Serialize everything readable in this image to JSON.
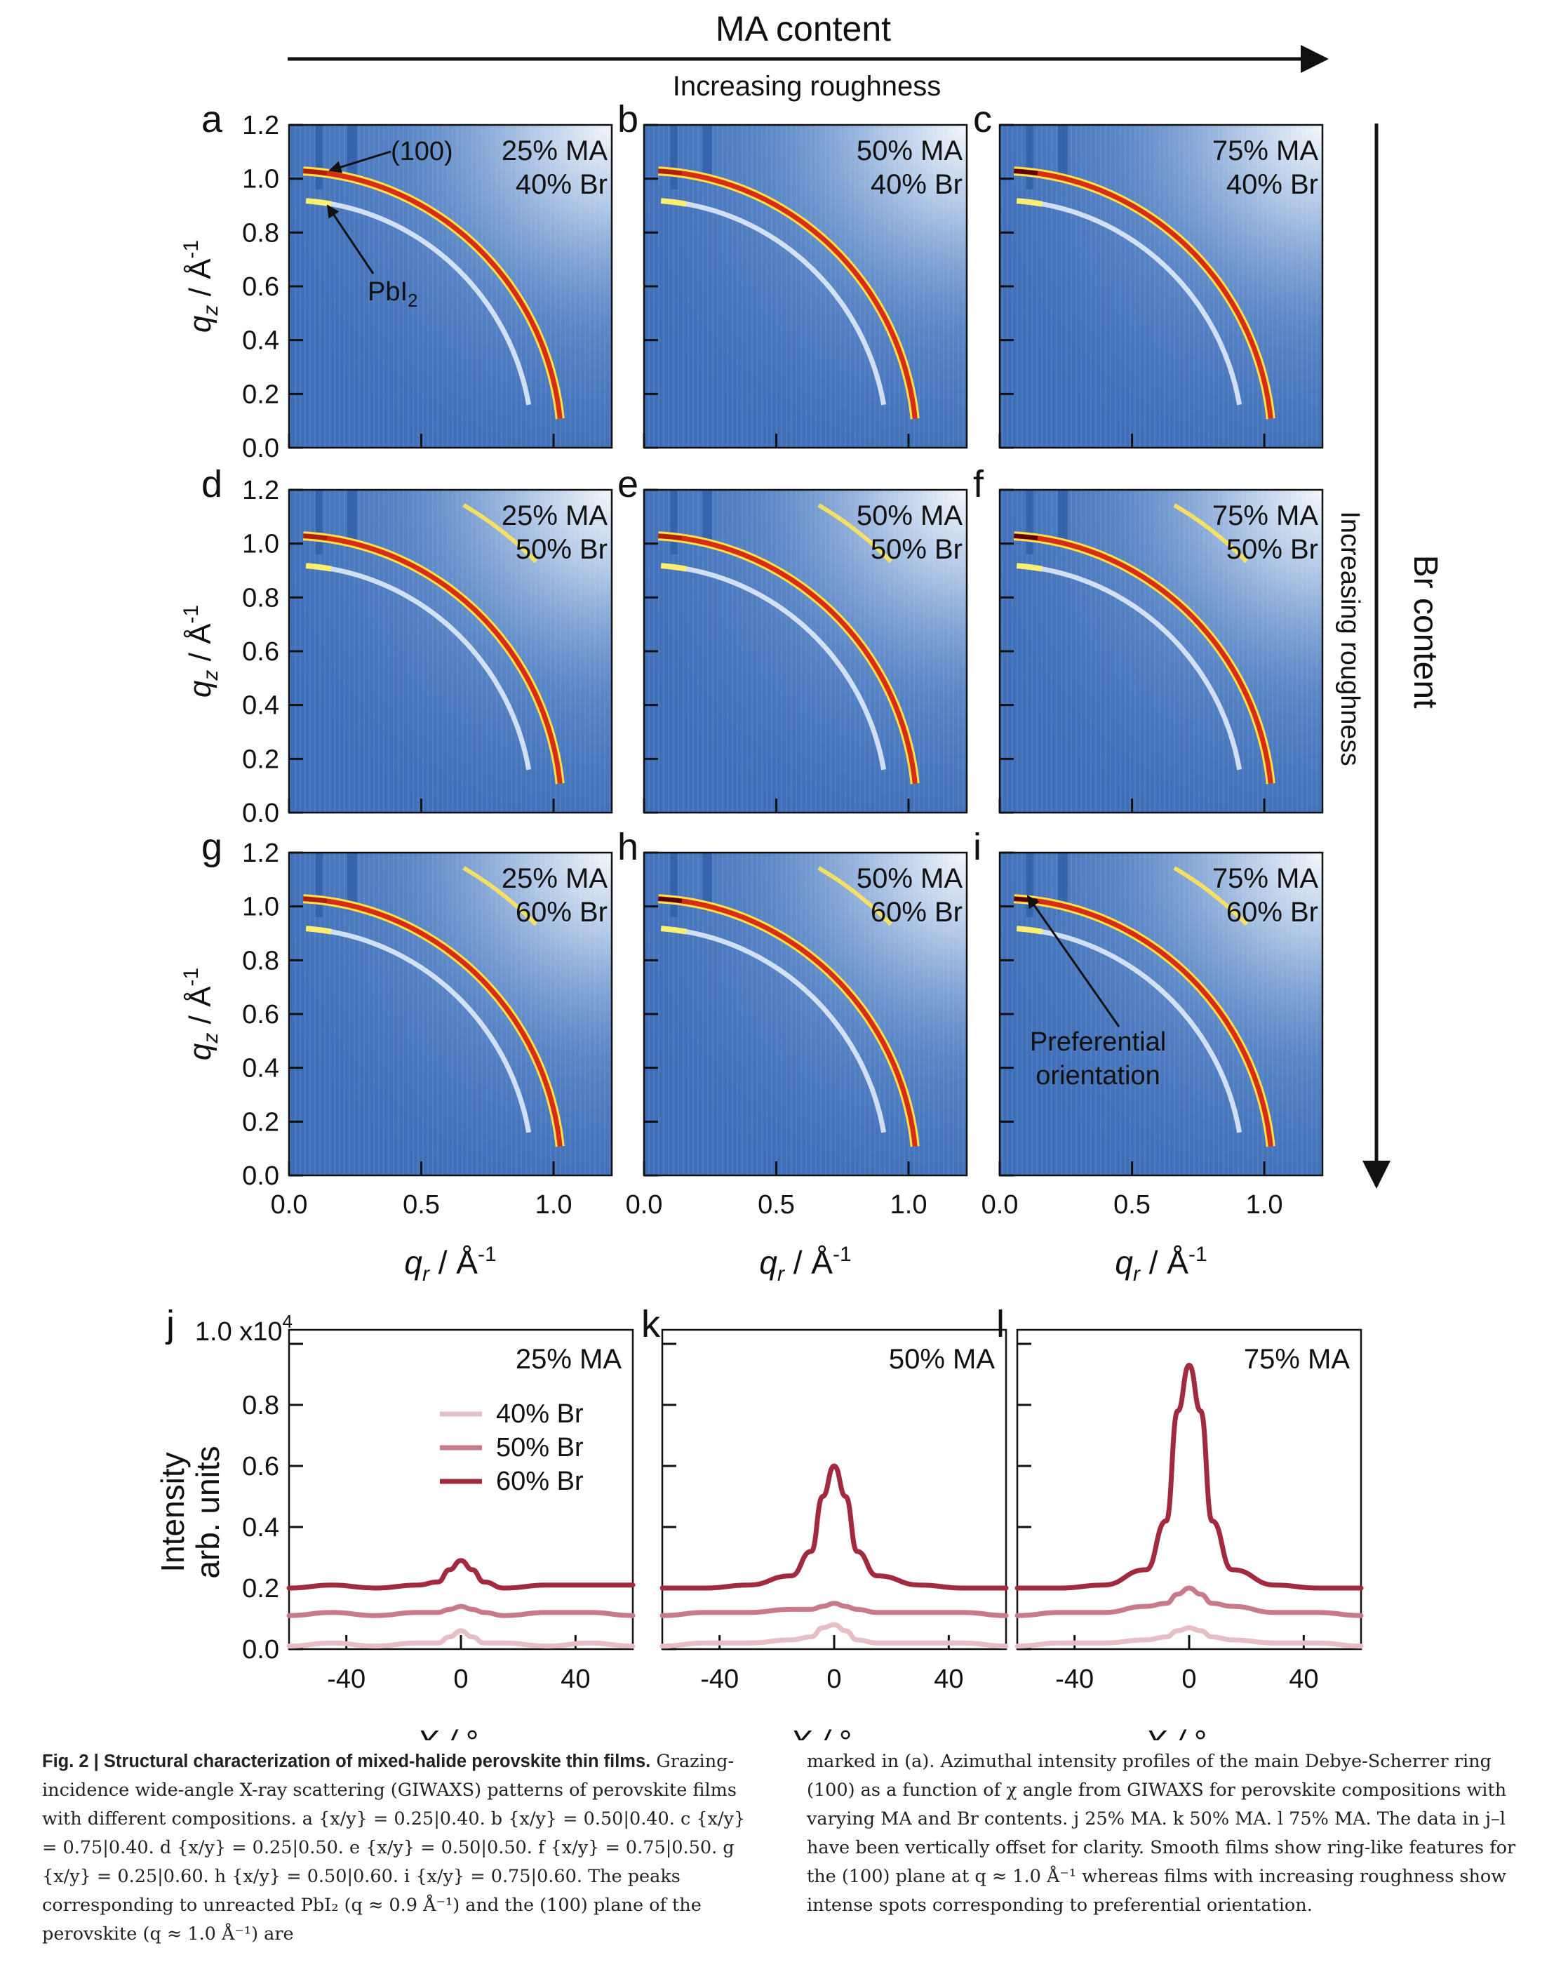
{
  "header": {
    "top_label": "MA content",
    "top_sub": "Increasing roughness",
    "right_label": "Br content",
    "right_sub": "Increasing roughness"
  },
  "giwaxs": {
    "y_axis_label": "q",
    "y_axis_sub": "z",
    "y_axis_unit": " / Å",
    "y_axis_exp": "-1",
    "x_axis_label": "q",
    "x_axis_sub": "r",
    "x_axis_unit": " / Å",
    "x_axis_exp": "-1",
    "y_ticks": [
      "0.0",
      "0.2",
      "0.4",
      "0.6",
      "0.8",
      "1.0",
      "1.2"
    ],
    "x_ticks": [
      "0.0",
      "0.5",
      "1.0"
    ],
    "panels": [
      {
        "letter": "a",
        "ma": "25% MA",
        "br": "40% Br"
      },
      {
        "letter": "b",
        "ma": "50% MA",
        "br": "40% Br"
      },
      {
        "letter": "c",
        "ma": "75% MA",
        "br": "40% Br"
      },
      {
        "letter": "d",
        "ma": "25% MA",
        "br": "50% Br"
      },
      {
        "letter": "e",
        "ma": "50% MA",
        "br": "50% Br"
      },
      {
        "letter": "f",
        "ma": "75% MA",
        "br": "50% Br"
      },
      {
        "letter": "g",
        "ma": "25% MA",
        "br": "60% Br"
      },
      {
        "letter": "h",
        "ma": "50% MA",
        "br": "60% Br"
      },
      {
        "letter": "i",
        "ma": "75% MA",
        "br": "60% Br"
      }
    ],
    "annotations": {
      "plane": "(100)",
      "pbi": "PbI",
      "pbi_sub": "2",
      "pref_1": "Preferential",
      "pref_2": "orientation"
    }
  },
  "chart_data": [
    {
      "type": "line",
      "panel": "j",
      "label": "25% MA",
      "xlabel": "X / °",
      "ylabel": "Intensity arb. units",
      "y_scale_label": "1.0 x10",
      "y_scale_exp": "4",
      "xlim": [
        -60,
        60
      ],
      "ylim": [
        0.0,
        1.0
      ],
      "x_ticks": [
        -40,
        0,
        40
      ],
      "y_ticks": [
        "0.0",
        "0.2",
        "0.4",
        "0.6",
        "0.8"
      ],
      "legend_position": "top-center",
      "series": [
        {
          "name": "40% Br",
          "color": "#e7bdc6",
          "x": [
            -60,
            -45,
            -30,
            -15,
            -8,
            -4,
            0,
            4,
            8,
            15,
            30,
            45,
            60
          ],
          "y": [
            0.01,
            0.02,
            0.01,
            0.02,
            0.02,
            0.04,
            0.06,
            0.04,
            0.02,
            0.02,
            0.01,
            0.02,
            0.01
          ]
        },
        {
          "name": "50% Br",
          "color": "#c97a8a",
          "x": [
            -60,
            -45,
            -30,
            -15,
            -8,
            -4,
            0,
            4,
            8,
            15,
            30,
            45,
            60
          ],
          "y": [
            0.11,
            0.12,
            0.11,
            0.12,
            0.12,
            0.13,
            0.14,
            0.13,
            0.12,
            0.11,
            0.12,
            0.12,
            0.11
          ]
        },
        {
          "name": "60% Br",
          "color": "#a12a3f",
          "x": [
            -60,
            -45,
            -30,
            -15,
            -8,
            -4,
            0,
            4,
            8,
            15,
            30,
            45,
            60
          ],
          "y": [
            0.2,
            0.21,
            0.2,
            0.21,
            0.22,
            0.26,
            0.29,
            0.26,
            0.22,
            0.2,
            0.21,
            0.21,
            0.21
          ]
        }
      ]
    },
    {
      "type": "line",
      "panel": "k",
      "label": "50% MA",
      "xlabel": "X / °",
      "xlim": [
        -60,
        60
      ],
      "ylim": [
        0.0,
        1.0
      ],
      "x_ticks": [
        -40,
        0,
        40
      ],
      "series": [
        {
          "name": "40% Br",
          "color": "#e7bdc6",
          "x": [
            -60,
            -45,
            -30,
            -15,
            -8,
            -4,
            0,
            4,
            8,
            15,
            30,
            45,
            60
          ],
          "y": [
            0.01,
            0.02,
            0.02,
            0.03,
            0.04,
            0.07,
            0.08,
            0.06,
            0.03,
            0.02,
            0.02,
            0.02,
            0.01
          ]
        },
        {
          "name": "50% Br",
          "color": "#c97a8a",
          "x": [
            -60,
            -45,
            -30,
            -15,
            -8,
            -4,
            0,
            4,
            8,
            15,
            30,
            45,
            60
          ],
          "y": [
            0.11,
            0.12,
            0.12,
            0.13,
            0.13,
            0.14,
            0.15,
            0.14,
            0.13,
            0.12,
            0.12,
            0.12,
            0.11
          ]
        },
        {
          "name": "60% Br",
          "color": "#a12a3f",
          "x": [
            -60,
            -45,
            -30,
            -15,
            -8,
            -4,
            0,
            4,
            8,
            15,
            30,
            45,
            60
          ],
          "y": [
            0.2,
            0.2,
            0.21,
            0.24,
            0.32,
            0.5,
            0.6,
            0.5,
            0.32,
            0.24,
            0.21,
            0.2,
            0.2
          ]
        }
      ]
    },
    {
      "type": "line",
      "panel": "l",
      "label": "75% MA",
      "xlabel": "X / °",
      "xlim": [
        -60,
        60
      ],
      "ylim": [
        0.0,
        1.0
      ],
      "x_ticks": [
        -40,
        0,
        40
      ],
      "series": [
        {
          "name": "40% Br",
          "color": "#e7bdc6",
          "x": [
            -60,
            -45,
            -30,
            -15,
            -8,
            -4,
            0,
            4,
            8,
            15,
            30,
            45,
            60
          ],
          "y": [
            0.01,
            0.02,
            0.02,
            0.03,
            0.04,
            0.06,
            0.07,
            0.06,
            0.04,
            0.03,
            0.02,
            0.02,
            0.01
          ]
        },
        {
          "name": "50% Br",
          "color": "#c97a8a",
          "x": [
            -60,
            -45,
            -30,
            -15,
            -8,
            -4,
            0,
            4,
            8,
            15,
            30,
            45,
            60
          ],
          "y": [
            0.11,
            0.12,
            0.12,
            0.14,
            0.15,
            0.18,
            0.2,
            0.18,
            0.15,
            0.14,
            0.12,
            0.12,
            0.11
          ]
        },
        {
          "name": "60% Br",
          "color": "#a12a3f",
          "x": [
            -60,
            -45,
            -30,
            -15,
            -8,
            -4,
            0,
            4,
            8,
            15,
            30,
            45,
            60
          ],
          "y": [
            0.2,
            0.2,
            0.21,
            0.26,
            0.42,
            0.78,
            0.93,
            0.78,
            0.42,
            0.26,
            0.21,
            0.2,
            0.2
          ]
        }
      ]
    }
  ],
  "caption": {
    "fig_label": "Fig. 2 | Structural characterization of mixed-halide perovskite thin films.",
    "col1": "Grazing-incidence wide-angle X-ray scattering (GIWAXS) patterns of perovskite films with different compositions. a {x/y} = 0.25|0.40. b {x/y} = 0.50|0.40. c {x/y} = 0.75|0.40. d {x/y} = 0.25|0.50. e {x/y} = 0.50|0.50. f {x/y} = 0.75|0.50. g {x/y} = 0.25|0.60. h {x/y} = 0.50|0.60. i {x/y} = 0.75|0.60. The peaks corresponding to unreacted PbI₂ (q ≈ 0.9 Å⁻¹) and the (100) plane of the perovskite (q ≈ 1.0 Å⁻¹) are",
    "col2": "marked in (a). Azimuthal intensity profiles of the main Debye-Scherrer ring (100) as a function of χ angle from GIWAXS for perovskite compositions with varying MA and Br contents. j 25% MA. k 50% MA. l 75% MA. The data in j–l have been vertically offset for clarity. Smooth films show ring-like features for the (100) plane at q ≈ 1.0 Å⁻¹ whereas films with increasing roughness show intense spots corresponding to preferential orientation."
  }
}
